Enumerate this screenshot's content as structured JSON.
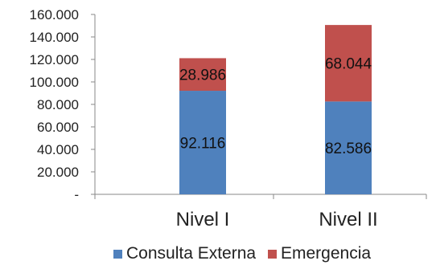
{
  "chart_data": {
    "type": "bar",
    "stacked": true,
    "categories": [
      "Nivel I",
      "Nivel II"
    ],
    "series": [
      {
        "name": "Consulta Externa",
        "values": [
          92116,
          82586
        ],
        "labels": [
          "92.116",
          "82.586"
        ],
        "color": "#4F81BD"
      },
      {
        "name": "Emergencia",
        "values": [
          28986,
          68044
        ],
        "labels": [
          "28.986",
          "68.044"
        ],
        "color": "#C0504D"
      }
    ],
    "ylim": [
      0,
      160000
    ],
    "yticks": [
      {
        "value": 0,
        "label": "-"
      },
      {
        "value": 20000,
        "label": "20.000"
      },
      {
        "value": 40000,
        "label": "40.000"
      },
      {
        "value": 60000,
        "label": "60.000"
      },
      {
        "value": 80000,
        "label": "80.000"
      },
      {
        "value": 100000,
        "label": "100.000"
      },
      {
        "value": 120000,
        "label": "120.000"
      },
      {
        "value": 140000,
        "label": "140.000"
      },
      {
        "value": 160000,
        "label": "160.000"
      }
    ],
    "grid": false,
    "legend_position": "bottom"
  }
}
